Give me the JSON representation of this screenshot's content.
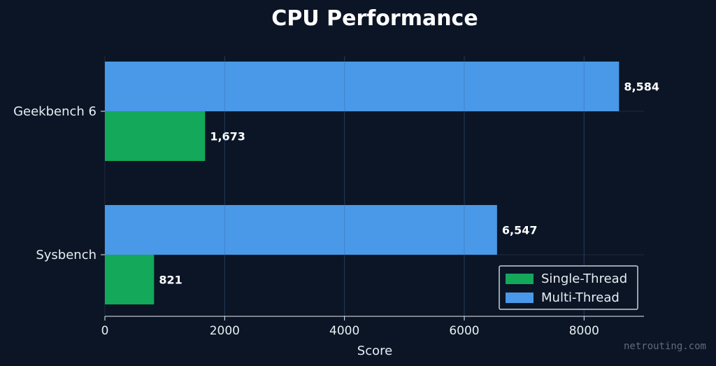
{
  "chart_data": {
    "type": "bar",
    "orientation": "horizontal",
    "title": "CPU Performance",
    "xlabel": "Score",
    "ylabel": "",
    "categories": [
      "Geekbench 6",
      "Sysbench"
    ],
    "series": [
      {
        "name": "Single-Thread",
        "values": [
          1673,
          821
        ],
        "labels": [
          "1,673",
          "821"
        ],
        "color": "#13a85a"
      },
      {
        "name": "Multi-Thread",
        "values": [
          8584,
          6547
        ],
        "labels": [
          "8,584",
          "6,547"
        ],
        "color": "#4a98e8"
      }
    ],
    "xlim": [
      0,
      9000
    ],
    "xticks": [
      0,
      2000,
      4000,
      6000,
      8000
    ],
    "xtick_labels": [
      "0",
      "2000",
      "4000",
      "6000",
      "8000"
    ],
    "grid": true,
    "legend_position": "lower-right"
  },
  "watermark": "netrouting.com",
  "colors": {
    "background": "#0b1526",
    "grid": "#1d2a3e",
    "axis": "#e8edf3",
    "legend_border": "#c9d0d8"
  }
}
